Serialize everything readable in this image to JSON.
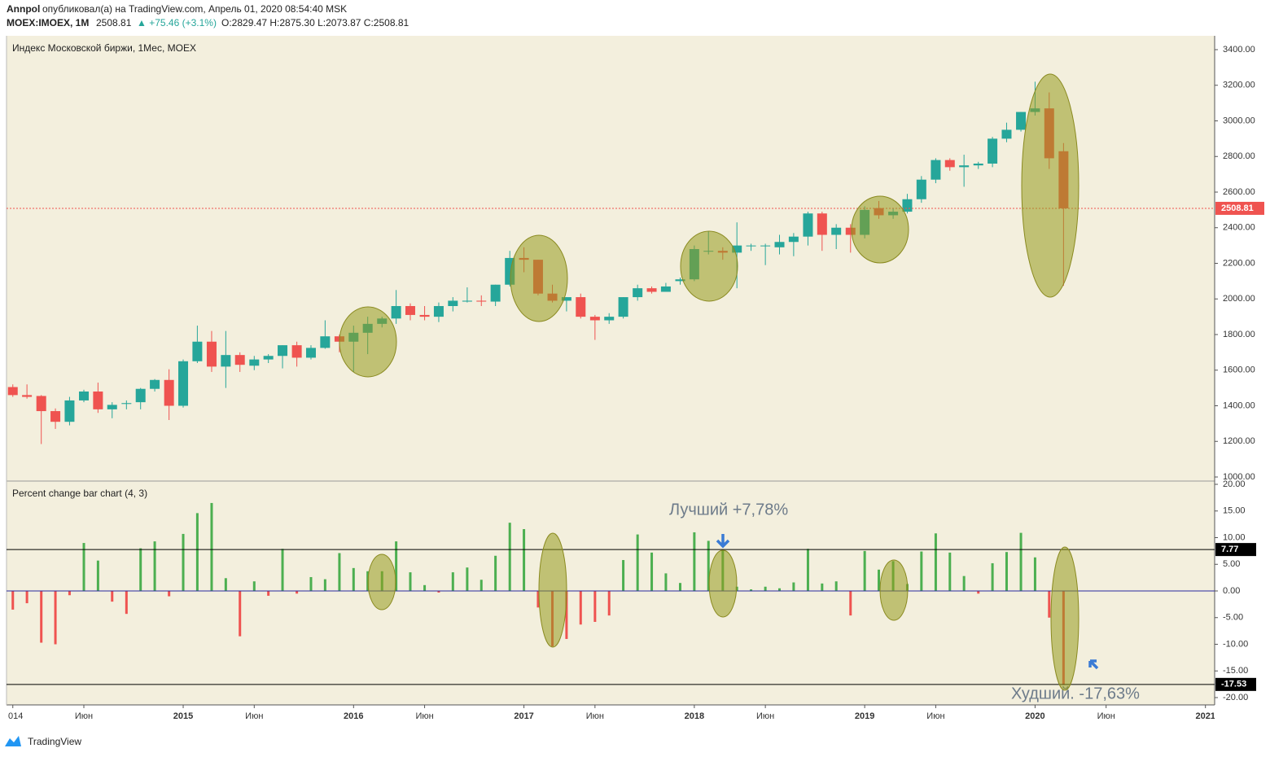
{
  "header": {
    "author": "Annpol",
    "published": "опубликовал(а) на TradingView.com, Апрель 01, 2020 08:54:40 MSK",
    "symbol": "MOEX:IMOEX, 1M",
    "last": "2508.81",
    "change": "▲ +75.46 (+3.1%)",
    "ohlc": "O:2829.47 H:2875.30 L:2073.87 C:2508.81"
  },
  "brand": "TradingView",
  "chart_data": [
    {
      "type": "candlestick",
      "title": "Индекс Московской биржи, 1Мес, MOEX",
      "x": [
        2014,
        2014.083,
        2014.167,
        2014.25,
        2014.333,
        2014.417,
        2014.5,
        2014.583,
        2014.667,
        2014.75,
        2014.833,
        2014.917,
        2015,
        2015.083,
        2015.167,
        2015.25,
        2015.333,
        2015.417,
        2015.5,
        2015.583,
        2015.667,
        2015.75,
        2015.833,
        2015.917,
        2016,
        2016.083,
        2016.167,
        2016.25,
        2016.333,
        2016.417,
        2016.5,
        2016.583,
        2016.667,
        2016.75,
        2016.833,
        2016.917,
        2017,
        2017.083,
        2017.167,
        2017.25,
        2017.333,
        2017.417,
        2017.5,
        2017.583,
        2017.667,
        2017.75,
        2017.833,
        2017.917,
        2018,
        2018.083,
        2018.167,
        2018.25,
        2018.333,
        2018.417,
        2018.5,
        2018.583,
        2018.667,
        2018.75,
        2018.833,
        2018.917,
        2019,
        2019.083,
        2019.167,
        2019.25,
        2019.333,
        2019.417,
        2019.5,
        2019.583,
        2019.667,
        2019.75,
        2019.833,
        2019.917,
        2020,
        2020.083,
        2020.167
      ],
      "open": [
        1505,
        1460,
        1455,
        1370,
        1310,
        1430,
        1480,
        1380,
        1410,
        1420,
        1495,
        1545,
        1400,
        1650,
        1760,
        1620,
        1685,
        1625,
        1660,
        1680,
        1740,
        1670,
        1725,
        1790,
        1760,
        1810,
        1860,
        1890,
        1960,
        1910,
        1900,
        1960,
        1985,
        1990,
        1985,
        2080,
        2230,
        2220,
        2030,
        1990,
        2010,
        1900,
        1880,
        1900,
        2010,
        2060,
        2040,
        2100,
        2110,
        2270,
        2270,
        2260,
        2300,
        2300,
        2290,
        2320,
        2350,
        2480,
        2360,
        2400,
        2360,
        2510,
        2470,
        2490,
        2560,
        2670,
        2780,
        2740,
        2750,
        2760,
        2900,
        2950,
        3050,
        3070,
        2829.47
      ],
      "high": [
        1520,
        1520,
        1460,
        1385,
        1450,
        1490,
        1530,
        1420,
        1430,
        1500,
        1550,
        1605,
        1660,
        1850,
        1820,
        1820,
        1700,
        1680,
        1690,
        1740,
        1760,
        1740,
        1880,
        1800,
        1850,
        1900,
        1900,
        2050,
        1975,
        1960,
        1980,
        2010,
        2065,
        2020,
        2080,
        2270,
        2290,
        2220,
        2080,
        2010,
        2030,
        1910,
        1920,
        2010,
        2080,
        2070,
        2090,
        2120,
        2300,
        2380,
        2290,
        2430,
        2310,
        2310,
        2360,
        2370,
        2490,
        2490,
        2420,
        2420,
        2520,
        2550,
        2510,
        2590,
        2690,
        2790,
        2790,
        2810,
        2770,
        2910,
        2990,
        3050,
        3220,
        3160,
        2875.3
      ],
      "low": [
        1450,
        1440,
        1185,
        1270,
        1290,
        1420,
        1360,
        1330,
        1380,
        1380,
        1480,
        1320,
        1390,
        1640,
        1590,
        1500,
        1590,
        1600,
        1640,
        1610,
        1620,
        1660,
        1720,
        1700,
        1590,
        1690,
        1840,
        1860,
        1880,
        1880,
        1870,
        1930,
        1980,
        1960,
        1960,
        2070,
        2150,
        2020,
        1980,
        1930,
        1890,
        1770,
        1860,
        1890,
        1990,
        2030,
        2040,
        2080,
        2100,
        2250,
        2220,
        2060,
        2270,
        2190,
        2250,
        2240,
        2300,
        2270,
        2280,
        2260,
        2340,
        2450,
        2450,
        2480,
        2540,
        2650,
        2720,
        2630,
        2730,
        2740,
        2880,
        2940,
        3030,
        2730,
        2073.87
      ],
      "close": [
        1460,
        1450,
        1370,
        1310,
        1430,
        1480,
        1380,
        1405,
        1415,
        1495,
        1545,
        1400,
        1650,
        1760,
        1620,
        1685,
        1630,
        1660,
        1680,
        1740,
        1670,
        1725,
        1790,
        1760,
        1810,
        1860,
        1890,
        1960,
        1910,
        1900,
        1960,
        1990,
        1990,
        1985,
        2080,
        2230,
        2220,
        2030,
        1990,
        2010,
        1900,
        1880,
        1900,
        2010,
        2060,
        2040,
        2070,
        2110,
        2280,
        2270,
        2260,
        2300,
        2300,
        2300,
        2320,
        2350,
        2480,
        2360,
        2400,
        2360,
        2500,
        2470,
        2490,
        2560,
        2670,
        2780,
        2740,
        2750,
        2760,
        2900,
        2950,
        3050,
        3070,
        2790,
        2508.81
      ],
      "up_color": "#26a69a",
      "down_color": "#ef5350",
      "xlim": [
        2013.963,
        2021.054
      ],
      "xticks": [
        {
          "value": 2014,
          "label": "014"
        },
        {
          "value": 2014.417,
          "label": "Июн"
        },
        2015,
        {
          "value": 2015.417,
          "label": "Июн"
        },
        2016,
        {
          "value": 2016.417,
          "label": "Июн"
        },
        2017,
        {
          "value": 2017.417,
          "label": "Июн"
        },
        2018,
        {
          "value": 2018.417,
          "label": "Июн"
        },
        2019,
        {
          "value": 2019.417,
          "label": "Июн"
        },
        2020,
        {
          "value": 2020.417,
          "label": "Июн"
        },
        2021
      ],
      "ylim": [
        981.7,
        3477.7
      ],
      "yticks": [
        {
          "value": 1000,
          "label": "1000.00"
        },
        {
          "value": 1200,
          "label": "1200.00"
        },
        {
          "value": 1400,
          "label": "1400.00"
        },
        {
          "value": 1600,
          "label": "1600.00"
        },
        {
          "value": 1800,
          "label": "1800.00"
        },
        {
          "value": 2000,
          "label": "2000.00"
        },
        {
          "value": 2200,
          "label": "2200.00"
        },
        {
          "value": 2400,
          "label": "2400.00"
        },
        {
          "value": 2600,
          "label": "2600.00"
        },
        {
          "value": 2800,
          "label": "2800.00"
        },
        {
          "value": 3000,
          "label": "3000.00"
        },
        {
          "value": 3200,
          "label": "3200.00"
        },
        {
          "value": 3400,
          "label": "3400.00"
        }
      ],
      "last_price": 2508.81,
      "last_price_color": "#ef5350",
      "grid": false
    },
    {
      "type": "bar",
      "title": "Percent change bar chart (4, 3)",
      "values": [
        -3.5,
        -2.3,
        -9.7,
        -10,
        -0.8,
        9,
        5.7,
        -2,
        -4.3,
        8,
        9.3,
        -1,
        10.7,
        14.6,
        16.5,
        2.4,
        -8.5,
        1.8,
        -0.9,
        7.9,
        -0.5,
        2.6,
        2.2,
        7.1,
        4.3,
        3.7,
        3.7,
        9.3,
        3.5,
        1.1,
        -0.3,
        3.5,
        4.4,
        2.1,
        6.6,
        12.8,
        11.6,
        -3.1,
        -10.4,
        -9,
        -6.3,
        -5.8,
        -4.6,
        5.8,
        10.6,
        7.2,
        3.3,
        1.5,
        11,
        9.4,
        7.78,
        0.8,
        0.3,
        0.8,
        0.5,
        1.6,
        7.9,
        1.4,
        1.8,
        -4.6,
        7.5,
        4,
        5.6,
        1.3,
        7.4,
        10.8,
        7.2,
        2.8,
        -0.5,
        5.2,
        7.3,
        10.9,
        6.3,
        -5,
        -17.63
      ],
      "up_color": "#4caf50",
      "down_color": "#ef5350",
      "ylim": [
        -21.22,
        20.46
      ],
      "yticks": [
        {
          "value": 20,
          "label": "20.00"
        },
        {
          "value": 15,
          "label": "15.00"
        },
        {
          "value": 10,
          "label": "10.00"
        },
        {
          "value": 5,
          "label": "5.00"
        },
        {
          "value": 0,
          "label": "0.00"
        },
        {
          "value": -5,
          "label": "-5.00"
        },
        {
          "value": -10,
          "label": "-10.00"
        },
        {
          "value": -15,
          "label": "-15.00"
        },
        {
          "value": -20,
          "label": "-20.00"
        }
      ],
      "levels": [
        7.77,
        -17.53
      ],
      "zero_line_color": "#2a2aa0",
      "annotations": [
        "Лучший +7,78%",
        "Худший. -17,63%"
      ],
      "grid": false
    }
  ]
}
